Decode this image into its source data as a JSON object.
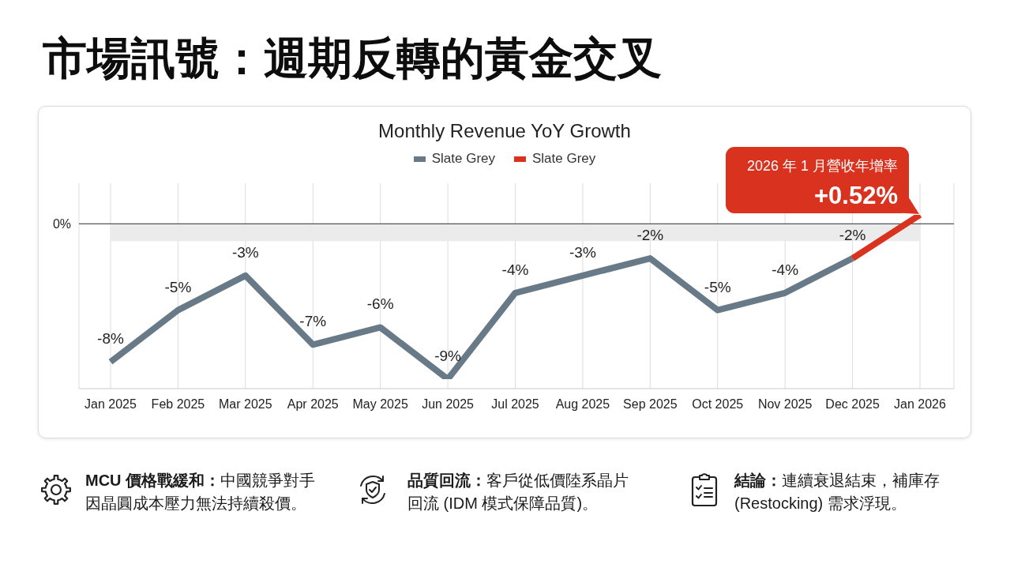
{
  "chart_data": {
    "type": "line",
    "title": "市場訊號：週期反轉的黃金交叉",
    "subtitle": "Monthly Revenue YoY Growth",
    "categories": [
      "Jan 2025",
      "Feb 2025",
      "Mar 2025",
      "Apr 2025",
      "May 2025",
      "Jun 2025",
      "Jul 2025",
      "Aug 2025",
      "Sep 2025",
      "Oct 2025",
      "Nov 2025",
      "Dec 2025",
      "Jan 2026"
    ],
    "series": [
      {
        "name": "Slate Grey",
        "color": "#687a87",
        "values": [
          -8,
          -5,
          -3,
          -7,
          -6,
          -9,
          -4,
          -3,
          -2,
          -5,
          -4,
          -2,
          null
        ],
        "value_labels": [
          "-8%",
          "-5%",
          "-3%",
          "-7%",
          "-6%",
          "-9%",
          "-4%",
          "-3%",
          "-2%",
          "-5%",
          "-4%",
          "-2%",
          null
        ]
      },
      {
        "name": "Slate Grey",
        "color": "#d9321f",
        "values": [
          null,
          null,
          null,
          null,
          null,
          null,
          null,
          null,
          null,
          null,
          null,
          -2,
          0.52
        ],
        "value_labels": [
          null,
          null,
          null,
          null,
          null,
          null,
          null,
          null,
          null,
          null,
          null,
          null,
          "+0.52%"
        ]
      }
    ],
    "ref_lines": [
      {
        "axis": "y",
        "value": 0,
        "label": "0%",
        "color": "#555555"
      }
    ],
    "bands": [
      {
        "axis": "y",
        "from": -1,
        "to": 0,
        "color": "#ebebeb"
      }
    ],
    "grid": "x",
    "legend": "top",
    "annotations": [
      "2026 年 1 月營收年增率",
      "MCU 價格戰緩和：中國競爭對手因晶圓成本壓力無法持續殺價。",
      "品質回流：客戶從低價陸系晶片回流 (IDM 模式保障品質)。",
      "結論：連續衰退結束，補庫存 (Restocking) 需求浮現。"
    ]
  }
}
